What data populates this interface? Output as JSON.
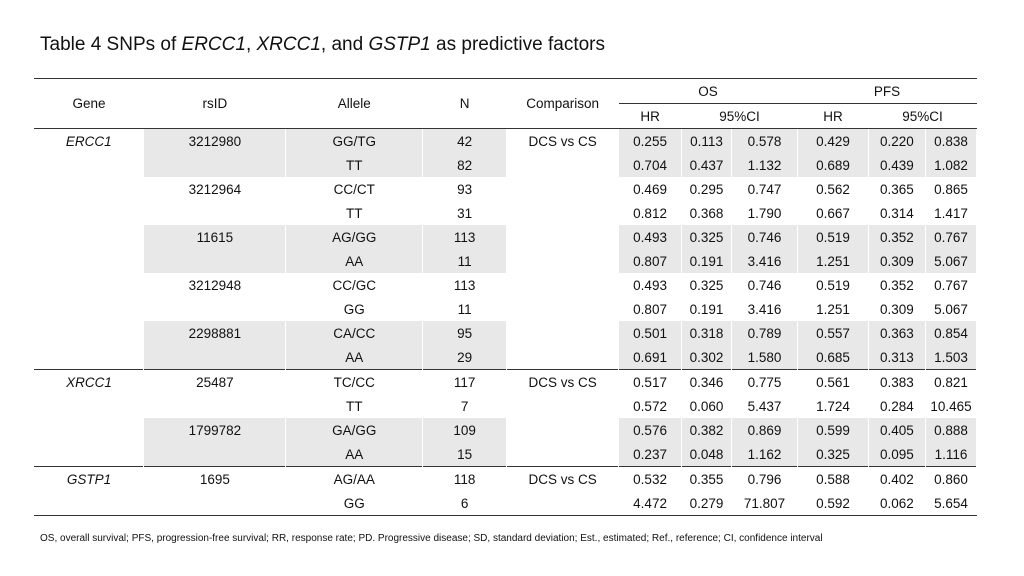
{
  "title": {
    "prefix": "Table 4 SNPs of ",
    "gene1": "ERCC1",
    "sep1": ", ",
    "gene2": "XRCC1",
    "sep2": ", and ",
    "gene3": "GSTP1",
    "suffix": " as predictive factors"
  },
  "headers": {
    "gene": "Gene",
    "rsid": "rsID",
    "allele": "Allele",
    "n": "N",
    "comparison": "Comparison",
    "os": "OS",
    "pfs": "PFS",
    "os_hr": "HR",
    "os_ci": "95%CI",
    "pfs_hr": "HR",
    "pfs_ci": "95%CI"
  },
  "rows": [
    {
      "gene": "ERCC1",
      "rsid": "3212980",
      "allele": "GG/TG",
      "n": "42",
      "comparison": "DCS vs CS",
      "os_hr": "0.255",
      "os_lo": "0.113",
      "os_hi": "0.578",
      "pfs_hr": "0.429",
      "pfs_lo": "0.220",
      "pfs_hi": "0.838"
    },
    {
      "gene": "",
      "rsid": "",
      "allele": "TT",
      "n": "82",
      "comparison": "",
      "os_hr": "0.704",
      "os_lo": "0.437",
      "os_hi": "1.132",
      "pfs_hr": "0.689",
      "pfs_lo": "0.439",
      "pfs_hi": "1.082"
    },
    {
      "gene": "",
      "rsid": "3212964",
      "allele": "CC/CT",
      "n": "93",
      "comparison": "",
      "os_hr": "0.469",
      "os_lo": "0.295",
      "os_hi": "0.747",
      "pfs_hr": "0.562",
      "pfs_lo": "0.365",
      "pfs_hi": "0.865"
    },
    {
      "gene": "",
      "rsid": "",
      "allele": "TT",
      "n": "31",
      "comparison": "",
      "os_hr": "0.812",
      "os_lo": "0.368",
      "os_hi": "1.790",
      "pfs_hr": "0.667",
      "pfs_lo": "0.314",
      "pfs_hi": "1.417"
    },
    {
      "gene": "",
      "rsid": "11615",
      "allele": "AG/GG",
      "n": "113",
      "comparison": "",
      "os_hr": "0.493",
      "os_lo": "0.325",
      "os_hi": "0.746",
      "pfs_hr": "0.519",
      "pfs_lo": "0.352",
      "pfs_hi": "0.767"
    },
    {
      "gene": "",
      "rsid": "",
      "allele": "AA",
      "n": "11",
      "comparison": "",
      "os_hr": "0.807",
      "os_lo": "0.191",
      "os_hi": "3.416",
      "pfs_hr": "1.251",
      "pfs_lo": "0.309",
      "pfs_hi": "5.067"
    },
    {
      "gene": "",
      "rsid": "3212948",
      "allele": "CC/GC",
      "n": "113",
      "comparison": "",
      "os_hr": "0.493",
      "os_lo": "0.325",
      "os_hi": "0.746",
      "pfs_hr": "0.519",
      "pfs_lo": "0.352",
      "pfs_hi": "0.767"
    },
    {
      "gene": "",
      "rsid": "",
      "allele": "GG",
      "n": "11",
      "comparison": "",
      "os_hr": "0.807",
      "os_lo": "0.191",
      "os_hi": "3.416",
      "pfs_hr": "1.251",
      "pfs_lo": "0.309",
      "pfs_hi": "5.067"
    },
    {
      "gene": "",
      "rsid": "2298881",
      "allele": "CA/CC",
      "n": "95",
      "comparison": "",
      "os_hr": "0.501",
      "os_lo": "0.318",
      "os_hi": "0.789",
      "pfs_hr": "0.557",
      "pfs_lo": "0.363",
      "pfs_hi": "0.854"
    },
    {
      "gene": "",
      "rsid": "",
      "allele": "AA",
      "n": "29",
      "comparison": "",
      "os_hr": "0.691",
      "os_lo": "0.302",
      "os_hi": "1.580",
      "pfs_hr": "0.685",
      "pfs_lo": "0.313",
      "pfs_hi": "1.503"
    },
    {
      "gene": "XRCC1",
      "rsid": "25487",
      "allele": "TC/CC",
      "n": "117",
      "comparison": "DCS vs CS",
      "os_hr": "0.517",
      "os_lo": "0.346",
      "os_hi": "0.775",
      "pfs_hr": "0.561",
      "pfs_lo": "0.383",
      "pfs_hi": "0.821"
    },
    {
      "gene": "",
      "rsid": "",
      "allele": "TT",
      "n": "7",
      "comparison": "",
      "os_hr": "0.572",
      "os_lo": "0.060",
      "os_hi": "5.437",
      "pfs_hr": "1.724",
      "pfs_lo": "0.284",
      "pfs_hi": "10.465"
    },
    {
      "gene": "",
      "rsid": "1799782",
      "allele": "GA/GG",
      "n": "109",
      "comparison": "",
      "os_hr": "0.576",
      "os_lo": "0.382",
      "os_hi": "0.869",
      "pfs_hr": "0.599",
      "pfs_lo": "0.405",
      "pfs_hi": "0.888"
    },
    {
      "gene": "",
      "rsid": "",
      "allele": "AA",
      "n": "15",
      "comparison": "",
      "os_hr": "0.237",
      "os_lo": "0.048",
      "os_hi": "1.162",
      "pfs_hr": "0.325",
      "pfs_lo": "0.095",
      "pfs_hi": "1.116"
    },
    {
      "gene": "GSTP1",
      "rsid": "1695",
      "allele": "AG/AA",
      "n": "118",
      "comparison": "DCS vs CS",
      "os_hr": "0.532",
      "os_lo": "0.355",
      "os_hi": "0.796",
      "pfs_hr": "0.588",
      "pfs_lo": "0.402",
      "pfs_hi": "0.860"
    },
    {
      "gene": "",
      "rsid": "",
      "allele": "GG",
      "n": "6",
      "comparison": "",
      "os_hr": "4.472",
      "os_lo": "0.279",
      "os_hi": "71.807",
      "pfs_hr": "0.592",
      "pfs_lo": "0.062",
      "pfs_hi": "5.654"
    }
  ],
  "footnote": "OS, overall survival; PFS, progression-free survival; RR, response rate; PD. Progressive disease; SD, standard deviation; Est., estimated; Ref., reference; CI, confidence interval"
}
